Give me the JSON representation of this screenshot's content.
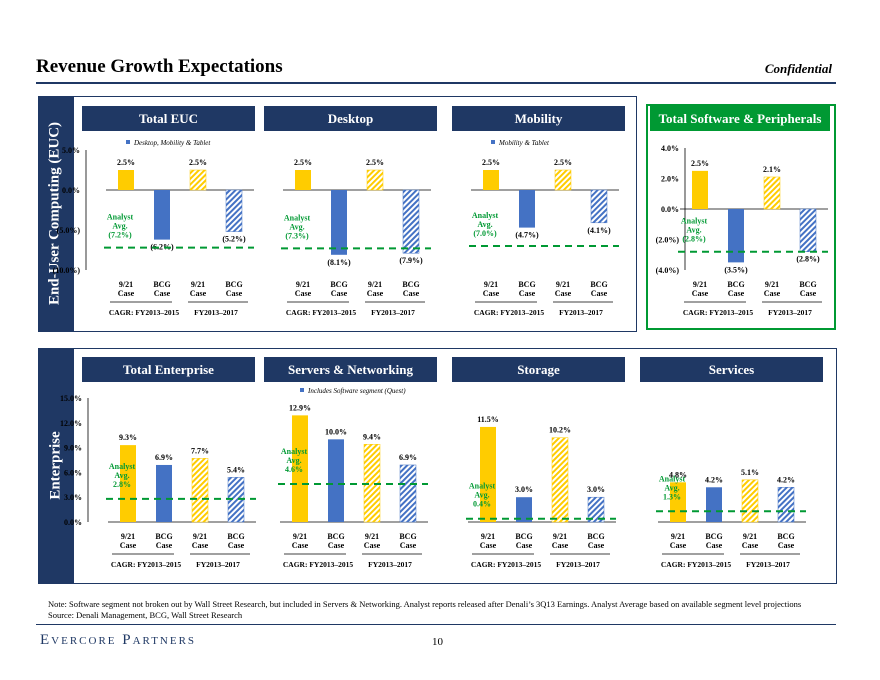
{
  "header": {
    "title": "Revenue Growth Expectations",
    "confidential": "Confidential"
  },
  "sections": {
    "euc_label": "End-User Computing (EUC)",
    "enterprise_label": "Enterprise"
  },
  "colors": {
    "navy": "#1f3864",
    "green": "#009933",
    "yellow": "#ffcc00",
    "blue": "#4472c4"
  },
  "categories": [
    "9/21 Case",
    "BCG Case",
    "9/21 Case",
    "BCG Case"
  ],
  "cagr_labels": [
    "CAGR: FY2013–2015",
    "FY2013–2017"
  ],
  "analyst_label": "Analyst Avg.",
  "chart_data": [
    {
      "type": "bar",
      "panel": "euc",
      "title": "Total EUC",
      "legend": "Desktop, Mobility & Tablet",
      "yticks": [
        5.0,
        0.0,
        -5.0,
        -10.0
      ],
      "ytick_labels": [
        "5.0%",
        "0.0%",
        "(5.0%)",
        "(10.0%)"
      ],
      "ylim": [
        -10,
        5
      ],
      "values": [
        2.5,
        -6.2,
        2.5,
        -5.2
      ],
      "labels": [
        "2.5%",
        "(6.2%)",
        "2.5%",
        "(5.2%)"
      ],
      "analyst_value": -7.2,
      "analyst_text": "(7.2%)"
    },
    {
      "type": "bar",
      "panel": "euc",
      "title": "Desktop",
      "legend": "",
      "yticks": [],
      "ylim": [
        -10,
        5
      ],
      "values": [
        2.5,
        -8.1,
        2.5,
        -7.9
      ],
      "labels": [
        "2.5%",
        "(8.1%)",
        "2.5%",
        "(7.9%)"
      ],
      "analyst_value": -7.3,
      "analyst_text": "(7.3%)"
    },
    {
      "type": "bar",
      "panel": "euc",
      "title": "Mobility",
      "legend": "Mobility & Tablet",
      "yticks": [],
      "ylim": [
        -10,
        5
      ],
      "values": [
        2.5,
        -4.7,
        2.5,
        -4.1
      ],
      "labels": [
        "2.5%",
        "(4.7%)",
        "2.5%",
        "(4.1%)"
      ],
      "analyst_value": -7.0,
      "analyst_text": "(7.0%)"
    },
    {
      "type": "bar",
      "panel": "software",
      "title": "Total Software & Peripherals",
      "legend": "",
      "yticks": [
        4.0,
        2.0,
        0.0,
        -2.0,
        -4.0
      ],
      "ytick_labels": [
        "4.0%",
        "2.0%",
        "0.0%",
        "(2.0%)",
        "(4.0%)"
      ],
      "ylim": [
        -4,
        4
      ],
      "values": [
        2.5,
        -3.5,
        2.1,
        -2.8
      ],
      "labels": [
        "2.5%",
        "(3.5%)",
        "2.1%",
        "(2.8%)"
      ],
      "analyst_value": -2.8,
      "analyst_text": "(2.8%)"
    },
    {
      "type": "bar",
      "panel": "enterprise",
      "title": "Total Enterprise",
      "legend": "",
      "yticks": [
        15.0,
        12.0,
        9.0,
        6.0,
        3.0,
        0.0
      ],
      "ytick_labels": [
        "15.0%",
        "12.0%",
        "9.0%",
        "6.0%",
        "3.0%",
        "0.0%"
      ],
      "ylim": [
        0,
        15
      ],
      "values": [
        9.3,
        6.9,
        7.7,
        5.4
      ],
      "labels": [
        "9.3%",
        "6.9%",
        "7.7%",
        "5.4%"
      ],
      "analyst_value": 2.8,
      "analyst_text": "2.8%"
    },
    {
      "type": "bar",
      "panel": "enterprise",
      "title": "Servers & Networking",
      "legend": "Includes Software segment (Quest)",
      "yticks": [],
      "ylim": [
        0,
        15
      ],
      "values": [
        12.9,
        10.0,
        9.4,
        6.9
      ],
      "labels": [
        "12.9%",
        "10.0%",
        "9.4%",
        "6.9%"
      ],
      "analyst_value": 4.6,
      "analyst_text": "4.6%"
    },
    {
      "type": "bar",
      "panel": "enterprise",
      "title": "Storage",
      "legend": "",
      "yticks": [],
      "ylim": [
        0,
        15
      ],
      "values": [
        11.5,
        3.0,
        10.2,
        3.0
      ],
      "labels": [
        "11.5%",
        "3.0%",
        "10.2%",
        "3.0%"
      ],
      "analyst_value": 0.4,
      "analyst_text": "0.4%"
    },
    {
      "type": "bar",
      "panel": "enterprise",
      "title": "Services",
      "legend": "",
      "yticks": [],
      "ylim": [
        0,
        15
      ],
      "values": [
        4.8,
        4.2,
        5.1,
        4.2
      ],
      "labels": [
        "4.8%",
        "4.2%",
        "5.1%",
        "4.2%"
      ],
      "analyst_value": 1.3,
      "analyst_text": "1.3%"
    }
  ],
  "notes": {
    "note": "Note: Software segment not broken out by Wall Street Research, but included in Servers & Networking. Analyst reports released after Denali’s 3Q13 Earnings. Analyst Average based on available segment level projections",
    "source": "Source: Denali Management, BCG, Wall Street Research"
  },
  "footer": {
    "logo": "Evercore Partners",
    "page": "10"
  }
}
